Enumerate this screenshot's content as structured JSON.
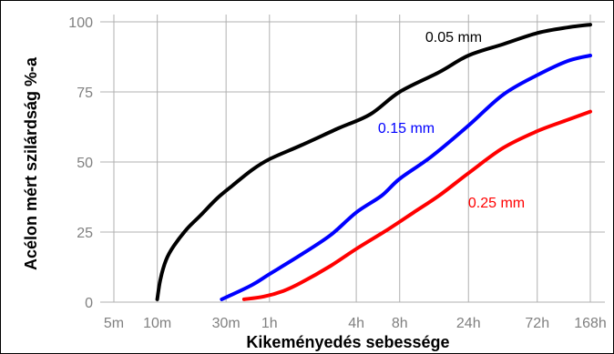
{
  "chart_data": {
    "type": "line",
    "xlabel": "Kikeményedés sebessége",
    "ylabel": "Acélon mért szilárdság %-a",
    "x_scale": "log",
    "x_unit": "minutes",
    "x_ticks": [
      {
        "label": "5m",
        "value": 5
      },
      {
        "label": "10m",
        "value": 10
      },
      {
        "label": "30m",
        "value": 30
      },
      {
        "label": "1h",
        "value": 60
      },
      {
        "label": "4h",
        "value": 240
      },
      {
        "label": "8h",
        "value": 480
      },
      {
        "label": "24h",
        "value": 1440
      },
      {
        "label": "72h",
        "value": 4320
      },
      {
        "label": "168h",
        "value": 10080
      }
    ],
    "ylim": [
      0,
      100
    ],
    "y_ticks": [
      0,
      25,
      50,
      75,
      100
    ],
    "grid": true,
    "series": [
      {
        "name": "0.05 mm",
        "color": "#000000",
        "points": [
          [
            10,
            1
          ],
          [
            10.5,
            8
          ],
          [
            11.5,
            15
          ],
          [
            13,
            20
          ],
          [
            16,
            26
          ],
          [
            20,
            31
          ],
          [
            26,
            37
          ],
          [
            34,
            42
          ],
          [
            45,
            47
          ],
          [
            60,
            51
          ],
          [
            100,
            56
          ],
          [
            180,
            62
          ],
          [
            300,
            67
          ],
          [
            480,
            75
          ],
          [
            900,
            82
          ],
          [
            1440,
            88
          ],
          [
            2500,
            92
          ],
          [
            4320,
            96
          ],
          [
            7000,
            98
          ],
          [
            10080,
            99
          ]
        ]
      },
      {
        "name": "0.15 mm",
        "color": "#0000ff",
        "points": [
          [
            28,
            1
          ],
          [
            45,
            6
          ],
          [
            60,
            10
          ],
          [
            100,
            17
          ],
          [
            160,
            24
          ],
          [
            240,
            32
          ],
          [
            360,
            38
          ],
          [
            480,
            44
          ],
          [
            800,
            52
          ],
          [
            1440,
            63
          ],
          [
            2500,
            74
          ],
          [
            4320,
            81
          ],
          [
            7000,
            86
          ],
          [
            10080,
            88
          ]
        ]
      },
      {
        "name": "0.25 mm",
        "color": "#ff0000",
        "points": [
          [
            40,
            1
          ],
          [
            55,
            2
          ],
          [
            75,
            4
          ],
          [
            100,
            7
          ],
          [
            160,
            13
          ],
          [
            240,
            19
          ],
          [
            400,
            26
          ],
          [
            600,
            32
          ],
          [
            900,
            38
          ],
          [
            1440,
            46
          ],
          [
            2500,
            55
          ],
          [
            4320,
            61
          ],
          [
            7000,
            65
          ],
          [
            10080,
            68
          ]
        ]
      }
    ],
    "legend": "inline"
  }
}
